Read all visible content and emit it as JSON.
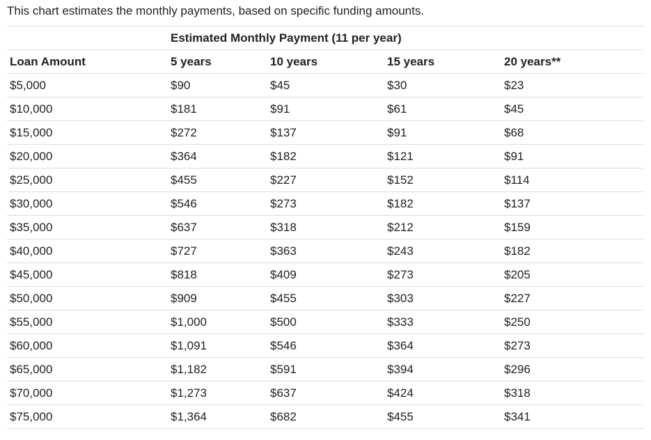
{
  "intro": "This chart estimates the monthly payments, based on specific funding amounts.",
  "table": {
    "group_header": "Estimated Monthly Payment (11 per year)",
    "columns": [
      "Loan Amount",
      "5 years",
      "10 years",
      "15 years",
      "20 years**"
    ],
    "rows": [
      [
        "$5,000",
        "$90",
        "$45",
        "$30",
        "$23"
      ],
      [
        "$10,000",
        "$181",
        "$91",
        "$61",
        "$45"
      ],
      [
        "$15,000",
        "$272",
        "$137",
        "$91",
        "$68"
      ],
      [
        "$20,000",
        "$364",
        "$182",
        "$121",
        "$91"
      ],
      [
        "$25,000",
        "$455",
        "$227",
        "$152",
        "$114"
      ],
      [
        "$30,000",
        "$546",
        "$273",
        "$182",
        "$137"
      ],
      [
        "$35,000",
        "$637",
        "$318",
        "$212",
        "$159"
      ],
      [
        "$40,000",
        "$727",
        "$363",
        "$243",
        "$182"
      ],
      [
        "$45,000",
        "$818",
        "$409",
        "$273",
        "$205"
      ],
      [
        "$50,000",
        "$909",
        "$455",
        "$303",
        "$227"
      ],
      [
        "$55,000",
        "$1,000",
        "$500",
        "$333",
        "$250"
      ],
      [
        "$60,000",
        "$1,091",
        "$546",
        "$364",
        "$273"
      ],
      [
        "$65,000",
        "$1,182",
        "$591",
        "$394",
        "$296"
      ],
      [
        "$70,000",
        "$1,273",
        "$637",
        "$424",
        "$318"
      ],
      [
        "$75,000",
        "$1,364",
        "$682",
        "$455",
        "$341"
      ]
    ]
  }
}
